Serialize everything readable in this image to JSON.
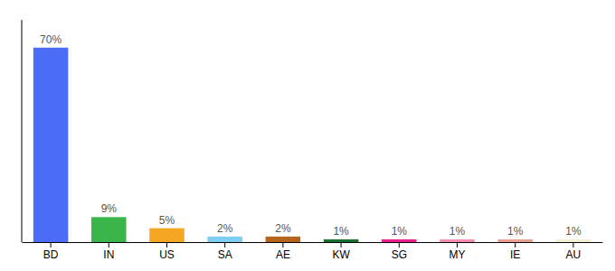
{
  "chart_data": {
    "type": "bar",
    "categories": [
      "BD",
      "IN",
      "US",
      "SA",
      "AE",
      "KW",
      "SG",
      "MY",
      "IE",
      "AU"
    ],
    "values": [
      70,
      9,
      5,
      2,
      2,
      1,
      1,
      1,
      1,
      1
    ],
    "value_labels": [
      "70%",
      "9%",
      "5%",
      "2%",
      "2%",
      "1%",
      "1%",
      "1%",
      "1%",
      "1%"
    ],
    "colors": [
      "#4a6cf7",
      "#3ab54a",
      "#f5a623",
      "#7ecef4",
      "#b5651d",
      "#1a6e2e",
      "#e91e8c",
      "#f48fb1",
      "#e8a090",
      "#f5f0d0"
    ],
    "ylim": [
      0,
      80
    ],
    "grid": false,
    "data_labels": true,
    "tick_labels": "x"
  }
}
